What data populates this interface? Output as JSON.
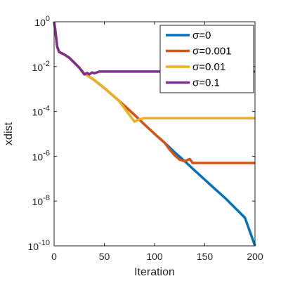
{
  "chart_data": {
    "type": "line",
    "title": "",
    "xlabel": "Iteration",
    "ylabel": "xdist",
    "xlim": [
      0,
      200
    ],
    "ylim": [
      1e-10,
      1
    ],
    "yscale": "log",
    "x_ticks": [
      {
        "value": 0,
        "label": "0"
      },
      {
        "value": 50,
        "label": "50"
      },
      {
        "value": 100,
        "label": "100"
      },
      {
        "value": 150,
        "label": "150"
      },
      {
        "value": 200,
        "label": "200"
      }
    ],
    "y_ticks": [
      {
        "value": 1,
        "base": "10",
        "exp": "0"
      },
      {
        "value": 0.01,
        "base": "10",
        "exp": "-2"
      },
      {
        "value": 0.0001,
        "base": "10",
        "exp": "-4"
      },
      {
        "value": 1e-06,
        "base": "10",
        "exp": "-6"
      },
      {
        "value": 1e-08,
        "base": "10",
        "exp": "-8"
      },
      {
        "value": 1e-10,
        "base": "10",
        "exp": "-10"
      }
    ],
    "grid": false,
    "legend_position": "top-right",
    "series": [
      {
        "name": "σ=0",
        "color": "#0072BD",
        "points": [
          [
            0,
            1
          ],
          [
            1,
            0.5
          ],
          [
            3,
            0.08
          ],
          [
            5,
            0.045
          ],
          [
            10,
            0.035
          ],
          [
            15,
            0.025
          ],
          [
            20,
            0.015
          ],
          [
            25,
            0.009
          ],
          [
            30,
            0.005
          ],
          [
            40,
            0.0025
          ],
          [
            50,
            0.0011
          ],
          [
            60,
            0.00045
          ],
          [
            70,
            0.00018
          ],
          [
            80,
            7e-05
          ],
          [
            90,
            2.6e-05
          ],
          [
            100,
            1e-05
          ],
          [
            110,
            4e-06
          ],
          [
            120,
            1.5e-06
          ],
          [
            130,
            6e-07
          ],
          [
            140,
            2.3e-07
          ],
          [
            150,
            9e-08
          ],
          [
            160,
            3.5e-08
          ],
          [
            170,
            1.4e-08
          ],
          [
            180,
            5e-09
          ],
          [
            190,
            1.8e-09
          ],
          [
            200,
            1e-10
          ]
        ]
      },
      {
        "name": "σ=0.001",
        "color": "#D95319",
        "points": [
          [
            0,
            1
          ],
          [
            1,
            0.5
          ],
          [
            3,
            0.08
          ],
          [
            5,
            0.045
          ],
          [
            10,
            0.035
          ],
          [
            15,
            0.025
          ],
          [
            20,
            0.015
          ],
          [
            25,
            0.009
          ],
          [
            30,
            0.005
          ],
          [
            40,
            0.0025
          ],
          [
            50,
            0.0011
          ],
          [
            60,
            0.00045
          ],
          [
            70,
            0.00018
          ],
          [
            80,
            7e-05
          ],
          [
            90,
            2.6e-05
          ],
          [
            100,
            1e-05
          ],
          [
            110,
            4e-06
          ],
          [
            115,
            2e-06
          ],
          [
            120,
            1.1e-06
          ],
          [
            125,
            7e-07
          ],
          [
            130,
            6e-07
          ],
          [
            135,
            7.5e-07
          ],
          [
            138,
            5e-07
          ],
          [
            145,
            5e-07
          ],
          [
            160,
            5e-07
          ],
          [
            180,
            5e-07
          ],
          [
            200,
            5e-07
          ]
        ]
      },
      {
        "name": "σ=0.01",
        "color": "#EDB120",
        "points": [
          [
            0,
            1
          ],
          [
            1,
            0.5
          ],
          [
            3,
            0.08
          ],
          [
            5,
            0.045
          ],
          [
            10,
            0.035
          ],
          [
            15,
            0.025
          ],
          [
            20,
            0.015
          ],
          [
            25,
            0.009
          ],
          [
            30,
            0.005
          ],
          [
            40,
            0.0025
          ],
          [
            50,
            0.0011
          ],
          [
            60,
            0.00045
          ],
          [
            65,
            0.00028
          ],
          [
            70,
            0.00014
          ],
          [
            75,
            7e-05
          ],
          [
            80,
            3.5e-05
          ],
          [
            85,
            4.5e-05
          ],
          [
            90,
            5e-05
          ],
          [
            100,
            5e-05
          ],
          [
            120,
            5e-05
          ],
          [
            150,
            5e-05
          ],
          [
            200,
            5e-05
          ]
        ]
      },
      {
        "name": "σ=0.1",
        "color": "#7E2F8E",
        "points": [
          [
            0,
            1
          ],
          [
            1,
            0.5
          ],
          [
            3,
            0.08
          ],
          [
            5,
            0.045
          ],
          [
            10,
            0.035
          ],
          [
            15,
            0.025
          ],
          [
            20,
            0.015
          ],
          [
            25,
            0.009
          ],
          [
            28,
            0.006
          ],
          [
            30,
            0.0045
          ],
          [
            33,
            0.0052
          ],
          [
            35,
            0.0045
          ],
          [
            38,
            0.0055
          ],
          [
            40,
            0.005
          ],
          [
            45,
            0.006
          ],
          [
            50,
            0.006
          ],
          [
            100,
            0.006
          ],
          [
            150,
            0.006
          ],
          [
            200,
            0.006
          ]
        ]
      }
    ]
  }
}
